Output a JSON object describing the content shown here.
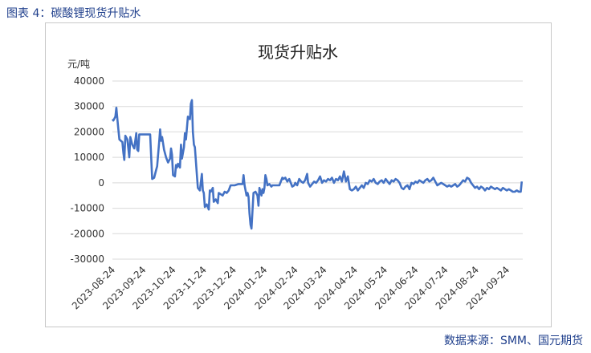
{
  "caption": "图表 4：碳酸锂现货升贴水",
  "source": "数据来源：SMM、国元期货",
  "colors": {
    "line": "#4472c4",
    "grid": "#d9d9d9",
    "caption": "#1f3f8c"
  },
  "chart_data": {
    "type": "line",
    "title": "现货升贴水",
    "ylabel": "元/吨",
    "xlabel": "",
    "ylim": [
      -30000,
      40000
    ],
    "yticks": [
      40000,
      30000,
      20000,
      10000,
      0,
      -10000,
      -20000,
      -30000
    ],
    "xlim": [
      "2023-08-24",
      "2024-10-10"
    ],
    "xticks": [
      "2023-08-24",
      "2023-09-24",
      "2023-10-24",
      "2023-11-24",
      "2023-12-24",
      "2024-01-24",
      "2024-02-24",
      "2024-03-24",
      "2024-04-24",
      "2024-05-24",
      "2024-06-24",
      "2024-07-24",
      "2024-08-24",
      "2024-09-24"
    ],
    "grid": true,
    "legend": "none",
    "series": [
      {
        "name": "",
        "points": [
          [
            "2023-08-24",
            25000
          ],
          [
            "2023-08-25",
            24500
          ],
          [
            "2023-08-27",
            26000
          ],
          [
            "2023-08-28",
            29500
          ],
          [
            "2023-08-29",
            25000
          ],
          [
            "2023-08-30",
            21000
          ],
          [
            "2023-08-31",
            17000
          ],
          [
            "2023-09-03",
            16000
          ],
          [
            "2023-09-04",
            12000
          ],
          [
            "2023-09-05",
            9000
          ],
          [
            "2023-09-06",
            18500
          ],
          [
            "2023-09-08",
            17000
          ],
          [
            "2023-09-10",
            10000
          ],
          [
            "2023-09-11",
            18000
          ],
          [
            "2023-09-13",
            15000
          ],
          [
            "2023-09-15",
            13500
          ],
          [
            "2023-09-17",
            19500
          ],
          [
            "2023-09-18",
            13000
          ],
          [
            "2023-09-19",
            12500
          ],
          [
            "2023-09-20",
            19000
          ],
          [
            "2023-09-30",
            19000
          ],
          [
            "2023-10-01",
            19000
          ],
          [
            "2023-10-03",
            1500
          ],
          [
            "2023-10-05",
            2000
          ],
          [
            "2023-10-07",
            5000
          ],
          [
            "2023-10-08",
            6500
          ],
          [
            "2023-10-10",
            16000
          ],
          [
            "2023-10-11",
            21000
          ],
          [
            "2023-10-12",
            16500
          ],
          [
            "2023-10-13",
            18000
          ],
          [
            "2023-10-15",
            13000
          ],
          [
            "2023-10-17",
            10000
          ],
          [
            "2023-10-19",
            8000
          ],
          [
            "2023-10-21",
            9500
          ],
          [
            "2023-10-22",
            13500
          ],
          [
            "2023-10-23",
            11000
          ],
          [
            "2023-10-24",
            3000
          ],
          [
            "2023-10-26",
            2500
          ],
          [
            "2023-10-27",
            7000
          ],
          [
            "2023-10-28",
            6000
          ],
          [
            "2023-10-29",
            7500
          ],
          [
            "2023-10-31",
            6000
          ],
          [
            "2023-11-01",
            15000
          ],
          [
            "2023-11-02",
            9500
          ],
          [
            "2023-11-04",
            14000
          ],
          [
            "2023-11-05",
            19500
          ],
          [
            "2023-11-06",
            17000
          ],
          [
            "2023-11-08",
            26000
          ],
          [
            "2023-11-10",
            25000
          ],
          [
            "2023-11-11",
            31000
          ],
          [
            "2023-11-12",
            32500
          ],
          [
            "2023-11-13",
            20000
          ],
          [
            "2023-11-14",
            15000
          ],
          [
            "2023-11-15",
            14000
          ],
          [
            "2023-11-17",
            3000
          ],
          [
            "2023-11-18",
            -2000
          ],
          [
            "2023-11-20",
            -3000
          ],
          [
            "2023-11-22",
            3500
          ],
          [
            "2023-11-23",
            -3000
          ],
          [
            "2023-11-24",
            -4000
          ],
          [
            "2023-11-25",
            -9500
          ],
          [
            "2023-11-27",
            -8500
          ],
          [
            "2023-11-29",
            -10500
          ],
          [
            "2023-11-30",
            -3000
          ],
          [
            "2023-12-01",
            -3500
          ],
          [
            "2023-12-03",
            -2000
          ],
          [
            "2023-12-04",
            -7500
          ],
          [
            "2023-12-06",
            -6500
          ],
          [
            "2023-12-08",
            -8000
          ],
          [
            "2023-12-09",
            -4000
          ],
          [
            "2023-12-11",
            -4500
          ],
          [
            "2023-12-13",
            -5000
          ],
          [
            "2023-12-15",
            -3500
          ],
          [
            "2023-12-17",
            -4000
          ],
          [
            "2023-12-19",
            -3000
          ],
          [
            "2023-12-21",
            -1000
          ],
          [
            "2023-12-25",
            -1000
          ],
          [
            "2023-12-29",
            -500
          ],
          [
            "2024-01-02",
            -500
          ],
          [
            "2024-01-03",
            3000
          ],
          [
            "2024-01-04",
            -1000
          ],
          [
            "2024-01-06",
            -5000
          ],
          [
            "2024-01-07",
            -4000
          ],
          [
            "2024-01-08",
            -5500
          ],
          [
            "2024-01-09",
            -12000
          ],
          [
            "2024-01-10",
            -16500
          ],
          [
            "2024-01-11",
            -18000
          ],
          [
            "2024-01-13",
            -4000
          ],
          [
            "2024-01-15",
            -3500
          ],
          [
            "2024-01-17",
            -5000
          ],
          [
            "2024-01-18",
            -9000
          ],
          [
            "2024-01-19",
            -2000
          ],
          [
            "2024-01-21",
            -5000
          ],
          [
            "2024-01-22",
            -2500
          ],
          [
            "2024-01-23",
            -4000
          ],
          [
            "2024-01-24",
            -2000
          ],
          [
            "2024-01-25",
            3000
          ],
          [
            "2024-01-26",
            1500
          ],
          [
            "2024-01-27",
            -1000
          ],
          [
            "2024-01-29",
            -500
          ],
          [
            "2024-01-31",
            -1500
          ],
          [
            "2024-02-01",
            -1000
          ],
          [
            "2024-02-08",
            -1000
          ],
          [
            "2024-02-11",
            2000
          ],
          [
            "2024-02-12",
            1500
          ],
          [
            "2024-02-14",
            2000
          ],
          [
            "2024-02-16",
            500
          ],
          [
            "2024-02-18",
            1500
          ],
          [
            "2024-02-20",
            -500
          ],
          [
            "2024-02-21",
            -1500
          ],
          [
            "2024-02-23",
            -1000
          ],
          [
            "2024-02-24",
            0
          ],
          [
            "2024-02-26",
            -1000
          ],
          [
            "2024-02-28",
            1500
          ],
          [
            "2024-03-01",
            500
          ],
          [
            "2024-03-03",
            0
          ],
          [
            "2024-03-05",
            1000
          ],
          [
            "2024-03-07",
            3500
          ],
          [
            "2024-03-08",
            0
          ],
          [
            "2024-03-10",
            -1500
          ],
          [
            "2024-03-12",
            -500
          ],
          [
            "2024-03-14",
            500
          ],
          [
            "2024-03-16",
            0
          ],
          [
            "2024-03-18",
            1000
          ],
          [
            "2024-03-20",
            2500
          ],
          [
            "2024-03-22",
            0
          ],
          [
            "2024-03-24",
            1000
          ],
          [
            "2024-03-26",
            500
          ],
          [
            "2024-03-28",
            1500
          ],
          [
            "2024-03-30",
            1000
          ],
          [
            "2024-04-01",
            2000
          ],
          [
            "2024-04-03",
            0
          ],
          [
            "2024-04-05",
            1500
          ],
          [
            "2024-04-07",
            1000
          ],
          [
            "2024-04-09",
            2500
          ],
          [
            "2024-04-11",
            500
          ],
          [
            "2024-04-13",
            4500
          ],
          [
            "2024-04-15",
            500
          ],
          [
            "2024-04-17",
            2500
          ],
          [
            "2024-04-19",
            -2500
          ],
          [
            "2024-04-21",
            -3000
          ],
          [
            "2024-04-23",
            -2500
          ],
          [
            "2024-04-25",
            -1500
          ],
          [
            "2024-04-27",
            -3000
          ],
          [
            "2024-04-29",
            -2000
          ],
          [
            "2024-05-01",
            -1000
          ],
          [
            "2024-05-03",
            -2000
          ],
          [
            "2024-05-05",
            0
          ],
          [
            "2024-05-07",
            -500
          ],
          [
            "2024-05-09",
            1000
          ],
          [
            "2024-05-11",
            500
          ],
          [
            "2024-05-13",
            1500
          ],
          [
            "2024-05-15",
            0
          ],
          [
            "2024-05-17",
            -500
          ],
          [
            "2024-05-19",
            500
          ],
          [
            "2024-05-21",
            1000
          ],
          [
            "2024-05-23",
            0
          ],
          [
            "2024-05-25",
            1500
          ],
          [
            "2024-05-27",
            500
          ],
          [
            "2024-05-29",
            -500
          ],
          [
            "2024-05-31",
            1000
          ],
          [
            "2024-06-02",
            500
          ],
          [
            "2024-06-04",
            1500
          ],
          [
            "2024-06-06",
            1000
          ],
          [
            "2024-06-08",
            0
          ],
          [
            "2024-06-10",
            -2000
          ],
          [
            "2024-06-12",
            -2500
          ],
          [
            "2024-06-14",
            -1500
          ],
          [
            "2024-06-16",
            -1000
          ],
          [
            "2024-06-18",
            -2500
          ],
          [
            "2024-06-20",
            0
          ],
          [
            "2024-06-22",
            -500
          ],
          [
            "2024-06-24",
            500
          ],
          [
            "2024-06-26",
            0
          ],
          [
            "2024-06-28",
            1000
          ],
          [
            "2024-06-30",
            500
          ],
          [
            "2024-07-02",
            0
          ],
          [
            "2024-07-04",
            1000
          ],
          [
            "2024-07-06",
            1500
          ],
          [
            "2024-07-08",
            500
          ],
          [
            "2024-07-10",
            1000
          ],
          [
            "2024-07-12",
            2000
          ],
          [
            "2024-07-14",
            500
          ],
          [
            "2024-07-16",
            -1000
          ],
          [
            "2024-07-18",
            -500
          ],
          [
            "2024-07-20",
            0
          ],
          [
            "2024-07-22",
            -500
          ],
          [
            "2024-07-24",
            -1000
          ],
          [
            "2024-07-26",
            -1500
          ],
          [
            "2024-07-28",
            -1000
          ],
          [
            "2024-07-30",
            -1500
          ],
          [
            "2024-08-01",
            -1000
          ],
          [
            "2024-08-03",
            -500
          ],
          [
            "2024-08-05",
            -1500
          ],
          [
            "2024-08-07",
            -1000
          ],
          [
            "2024-08-09",
            0
          ],
          [
            "2024-08-11",
            1000
          ],
          [
            "2024-08-13",
            500
          ],
          [
            "2024-08-15",
            2000
          ],
          [
            "2024-08-17",
            1500
          ],
          [
            "2024-08-19",
            0
          ],
          [
            "2024-08-21",
            -1000
          ],
          [
            "2024-08-23",
            -2000
          ],
          [
            "2024-08-25",
            -1500
          ],
          [
            "2024-08-27",
            -2500
          ],
          [
            "2024-08-29",
            -1500
          ],
          [
            "2024-08-31",
            -2000
          ],
          [
            "2024-09-02",
            -3000
          ],
          [
            "2024-09-04",
            -2000
          ],
          [
            "2024-09-06",
            -2500
          ],
          [
            "2024-09-08",
            -1500
          ],
          [
            "2024-09-10",
            -2000
          ],
          [
            "2024-09-12",
            -2500
          ],
          [
            "2024-09-14",
            -2000
          ],
          [
            "2024-09-16",
            -2500
          ],
          [
            "2024-09-18",
            -3000
          ],
          [
            "2024-09-20",
            -2000
          ],
          [
            "2024-09-22",
            -2500
          ],
          [
            "2024-09-24",
            -3000
          ],
          [
            "2024-09-26",
            -2500
          ],
          [
            "2024-09-28",
            -3000
          ],
          [
            "2024-09-30",
            -3500
          ],
          [
            "2024-10-02",
            -3500
          ],
          [
            "2024-10-04",
            -3000
          ],
          [
            "2024-10-06",
            -3500
          ],
          [
            "2024-10-08",
            -3500
          ],
          [
            "2024-10-09",
            500
          ]
        ]
      }
    ]
  }
}
